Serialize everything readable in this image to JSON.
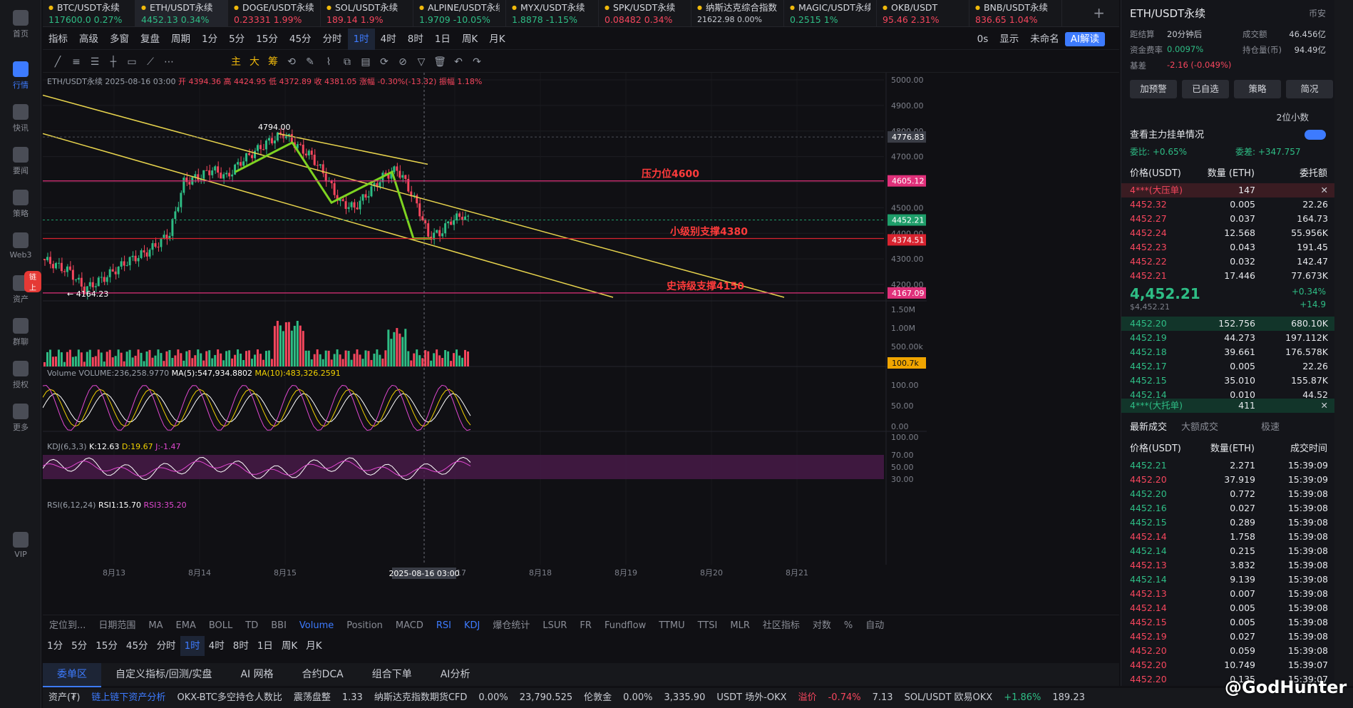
{
  "sidebar": [
    {
      "label": "首页"
    },
    {
      "label": "行情",
      "active": true
    },
    {
      "label": "快讯"
    },
    {
      "label": "要闻"
    },
    {
      "label": "策略"
    },
    {
      "label": "Web3"
    },
    {
      "label": "资产",
      "badge": "链上"
    },
    {
      "label": "群聊"
    },
    {
      "label": "授权"
    },
    {
      "label": "更多"
    },
    {
      "label": "VIP"
    }
  ],
  "tabs": [
    {
      "name": "BTC/USDT永续",
      "price": "117600.0",
      "chg": "0.27%",
      "dir": "up"
    },
    {
      "name": "ETH/USDT永续",
      "price": "4452.13",
      "chg": "0.34%",
      "dir": "up",
      "active": true
    },
    {
      "name": "DOGE/USDT永续",
      "price": "0.23331",
      "chg": "1.99%",
      "dir": "dn"
    },
    {
      "name": "SOL/USDT永续",
      "price": "189.14",
      "chg": "1.9%",
      "dir": "dn"
    },
    {
      "name": "ALPINE/USDT永续",
      "price": "1.9709",
      "chg": "-10.05%",
      "dir": "up"
    },
    {
      "name": "MYX/USDT永续",
      "price": "1.8878",
      "chg": "-1.15%",
      "dir": "up"
    },
    {
      "name": "SPK/USDT永续",
      "price": "0.08482",
      "chg": "0.34%",
      "dir": "dn"
    },
    {
      "name": "纳斯达克综合指数",
      "price": "21622.98",
      "chg": "0.00%",
      "dir": "plain"
    },
    {
      "name": "MAGIC/USDT永续",
      "price": "0.2515",
      "chg": "1%",
      "dir": "up"
    },
    {
      "name": "OKB/USDT",
      "price": "95.46",
      "chg": "2.31%",
      "dir": "dn"
    },
    {
      "name": "BNB/USDT永续",
      "price": "836.65",
      "chg": "1.04%",
      "dir": "dn"
    }
  ],
  "toolbar1": {
    "items": [
      "指标",
      "高级",
      "多窗",
      "复盘",
      "周期",
      "1分",
      "5分",
      "15分",
      "45分",
      "分时",
      "1时",
      "4时",
      "8时",
      "1日",
      "周K",
      "月K"
    ],
    "active": "1时",
    "right": [
      "0s",
      "显示",
      "未命名",
      "AI解读"
    ]
  },
  "toolbar2": {
    "items": [
      "主",
      "大",
      "筹"
    ]
  },
  "chart_data": {
    "type": "candlestick",
    "symbol": "ETH/USDT永续",
    "header": {
      "datetime": "2025-08-16 03:00",
      "open": "开 4394.36",
      "high": "高 4424.95",
      "low": "低 4372.89",
      "close": "收 4381.05",
      "change": "涨幅 -0.30%(-13.32)",
      "amplitude": "振幅 1.18%"
    },
    "ylim": [
      4150,
      5000
    ],
    "yticks": [
      5000,
      4900,
      4800,
      4700,
      4600,
      4500,
      4400,
      4300,
      4200
    ],
    "xticks": [
      "8月13",
      "8月14",
      "8月15",
      "8月17",
      "8月18",
      "8月19",
      "8月20",
      "8月21"
    ],
    "crosshair_x": "2025-08-16 03:00",
    "price_tags": [
      {
        "value": 4776.83,
        "label": "4776.83",
        "color": "#3a3d46"
      },
      {
        "value": 4605.12,
        "label": "4605.12",
        "color": "#e0307a"
      },
      {
        "value": 4452.21,
        "label": "4452.21",
        "color": "#1e9e6a"
      },
      {
        "value": 4374.51,
        "label": "4374.51",
        "color": "#d8232f"
      },
      {
        "value": 4167.09,
        "label": "4167.09",
        "color": "#e0307a"
      }
    ],
    "hlines": [
      {
        "value": 4605,
        "color": "#e0307a",
        "text": "压力位4600"
      },
      {
        "value": 4380,
        "color": "#d8232f",
        "text": "小级别支撑4380"
      },
      {
        "value": 4167,
        "color": "#e0307a",
        "text": "史诗级支撑4150"
      }
    ],
    "marks": [
      {
        "label": "4794.00"
      },
      {
        "label": "4164.23"
      }
    ],
    "volume": {
      "title": "Volume",
      "vol": "VOLUME:236,258.9770",
      "ma5": "MA(5):547,934.8802",
      "ma10": "MA(10):483,326.2591",
      "yticks": [
        "1.50M",
        "1.00M",
        "500.00k"
      ],
      "tag": "100.7k"
    },
    "kdj": {
      "title": "KDJ(6,3,3)",
      "k": "K:12.63",
      "d": "D:19.67",
      "j": "J:-1.47",
      "yticks": [
        "100.00",
        "50.00",
        "0.00"
      ]
    },
    "rsi": {
      "title": "RSI(6,12,24)",
      "r1": "RSI1:15.70",
      "r3": "RSI3:35.20",
      "yticks": [
        "100.00",
        "70.00",
        "50.00",
        "30.00"
      ]
    }
  },
  "bottom_indicators": [
    "定位到...",
    "日期范围",
    "MA",
    "EMA",
    "BOLL",
    "TD",
    "BBI",
    "Volume",
    "Position",
    "MACD",
    "RSI",
    "KDJ",
    "爆仓统计",
    "LSUR",
    "FR",
    "Fundflow",
    "TTMU",
    "TTSI",
    "MLR",
    "社区指标",
    "对数",
    "%",
    "自动"
  ],
  "bottom_active": [
    "Volume",
    "RSI",
    "KDJ"
  ],
  "periods": [
    "1分",
    "5分",
    "15分",
    "45分",
    "分时",
    "1时",
    "4时",
    "8时",
    "1日",
    "周K",
    "月K"
  ],
  "period_active": "1时",
  "orderbar": [
    "委单区",
    "自定义指标/回测/实盘",
    "AI 网格",
    "合约DCA",
    "组合下单",
    "AI分析"
  ],
  "statusbar": [
    "资产(₮)",
    "链上链下资产分析",
    "OKX-BTC多空持仓人数比",
    "震荡盘整",
    "1.33",
    "纳斯达克指数期货CFD",
    "0.00%",
    "23,790.525",
    "伦敦金",
    "0.00%",
    "3,335.90",
    "USDT 场外-OKX",
    "溢价",
    "-0.74%",
    "7.13",
    "SOL/USDT 欧易OKX",
    "+1.86%",
    "189.23"
  ],
  "right": {
    "title": "ETH/USDT永续",
    "exchange": "币安",
    "stats": [
      {
        "k": "距结算",
        "v": "20分钟后",
        "k2": "成交额",
        "v2": "46.456亿"
      },
      {
        "k": "资金费率",
        "v": "0.0097%",
        "k2": "持仓量(币)",
        "v2": "94.49亿"
      },
      {
        "k": "基差",
        "v": "-2.16 (-0.049%)",
        "k2": "",
        "v2": ""
      }
    ],
    "buttons": [
      "加预警",
      "已自选",
      "策略",
      "简况"
    ],
    "decimals": "2位小数",
    "depth_title": "查看主力挂单情况",
    "ratio": {
      "wb": "委比: +0.65%",
      "wc": "委差: +347.757"
    },
    "headers": [
      "价格(USDT)",
      "数量 (ETH)",
      "委托额"
    ],
    "big_ask": {
      "label": "4***(大压单)",
      "qty": "147"
    },
    "asks": [
      {
        "p": "4452.32",
        "q": "0.005",
        "a": "22.26"
      },
      {
        "p": "4452.27",
        "q": "0.037",
        "a": "164.73"
      },
      {
        "p": "4452.24",
        "q": "12.568",
        "a": "55.956K"
      },
      {
        "p": "4452.23",
        "q": "0.043",
        "a": "191.45"
      },
      {
        "p": "4452.22",
        "q": "0.032",
        "a": "142.47"
      },
      {
        "p": "4452.21",
        "q": "17.446",
        "a": "77.673K"
      }
    ],
    "last": {
      "price": "4,452.21",
      "sub": "$4,452.21",
      "pct": "+0.34%",
      "chg": "+14.9"
    },
    "bids": [
      {
        "p": "4452.20",
        "q": "152.756",
        "a": "680.10K"
      },
      {
        "p": "4452.19",
        "q": "44.273",
        "a": "197.112K"
      },
      {
        "p": "4452.18",
        "q": "39.661",
        "a": "176.578K"
      },
      {
        "p": "4452.17",
        "q": "0.005",
        "a": "22.26"
      },
      {
        "p": "4452.15",
        "q": "35.010",
        "a": "155.87K"
      },
      {
        "p": "4452.14",
        "q": "0.010",
        "a": "44.52"
      }
    ],
    "big_bid": {
      "label": "4***(大托单)",
      "qty": "411"
    },
    "trades_tabs": [
      "最新成交",
      "大额成交",
      "极速"
    ],
    "trade_headers": [
      "价格(USDT)",
      "数量(ETH)",
      "成交时间"
    ],
    "trades": [
      {
        "p": "4452.21",
        "q": "2.271",
        "t": "15:39:09",
        "d": "up"
      },
      {
        "p": "4452.20",
        "q": "37.919",
        "t": "15:39:09",
        "d": "dn"
      },
      {
        "p": "4452.20",
        "q": "0.772",
        "t": "15:39:08",
        "d": "up"
      },
      {
        "p": "4452.16",
        "q": "0.027",
        "t": "15:39:08",
        "d": "up"
      },
      {
        "p": "4452.15",
        "q": "0.289",
        "t": "15:39:08",
        "d": "up"
      },
      {
        "p": "4452.14",
        "q": "1.758",
        "t": "15:39:08",
        "d": "dn"
      },
      {
        "p": "4452.14",
        "q": "0.215",
        "t": "15:39:08",
        "d": "up"
      },
      {
        "p": "4452.13",
        "q": "3.832",
        "t": "15:39:08",
        "d": "dn"
      },
      {
        "p": "4452.14",
        "q": "9.139",
        "t": "15:39:08",
        "d": "up"
      },
      {
        "p": "4452.13",
        "q": "0.007",
        "t": "15:39:08",
        "d": "dn"
      },
      {
        "p": "4452.14",
        "q": "0.005",
        "t": "15:39:08",
        "d": "dn"
      },
      {
        "p": "4452.15",
        "q": "0.005",
        "t": "15:39:08",
        "d": "dn"
      },
      {
        "p": "4452.19",
        "q": "0.027",
        "t": "15:39:08",
        "d": "dn"
      },
      {
        "p": "4452.20",
        "q": "0.059",
        "t": "15:39:08",
        "d": "dn"
      },
      {
        "p": "4452.20",
        "q": "10.749",
        "t": "15:39:07",
        "d": "dn"
      },
      {
        "p": "4452.20",
        "q": "0.135",
        "t": "15:39:07",
        "d": "dn"
      }
    ]
  },
  "watermark": "@GodHunter",
  "colors": {
    "up": "#2ebd85",
    "down": "#f6465d",
    "accent": "#3d7bff",
    "channel": "#e8d44d",
    "wave": "#7ed321",
    "resist": "#e0307a"
  }
}
